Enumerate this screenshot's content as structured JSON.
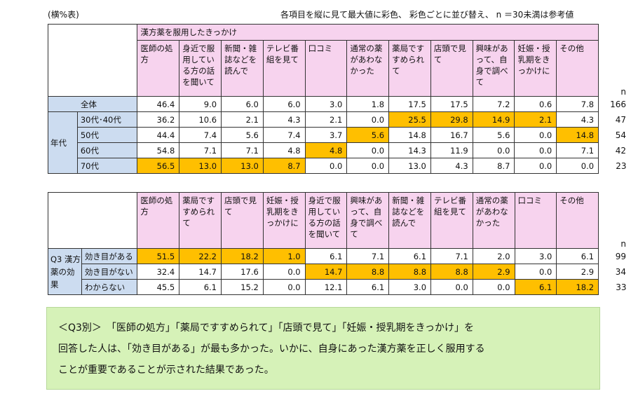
{
  "header": {
    "left": "(横%表)",
    "right": "各項目を縦に見て最大値に彩色、 彩色ごとに並び替え、 n ＝30未満は参考値"
  },
  "table1": {
    "title": "漢方薬を服用したきっかけ",
    "columns": [
      "医師の処方",
      "身近で服用している方の話を聞いて",
      "新聞・雑誌などを読んで",
      "テレビ番組を見て",
      "口コミ",
      "通常の薬があわなかった",
      "薬局ですすめられて",
      "店頭で見て",
      "興味があって、自身で調べて",
      "妊娠・授乳期をきっかけに",
      "その他"
    ],
    "n_label": "n",
    "group_label": "年代",
    "rows": [
      {
        "label": "全体",
        "values": [
          "46.4",
          "9.0",
          "6.0",
          "6.0",
          "3.0",
          "1.8",
          "17.5",
          "17.5",
          "7.2",
          "0.6",
          "7.8"
        ],
        "n": "166"
      },
      {
        "label": "30代･40代",
        "values": [
          "36.2",
          "10.6",
          "2.1",
          "4.3",
          "2.1",
          "0.0",
          "25.5",
          "29.8",
          "14.9",
          "2.1",
          "4.3"
        ],
        "n": "47"
      },
      {
        "label": "50代",
        "values": [
          "44.4",
          "7.4",
          "5.6",
          "7.4",
          "3.7",
          "5.6",
          "14.8",
          "16.7",
          "5.6",
          "0.0",
          "14.8"
        ],
        "n": "54"
      },
      {
        "label": "60代",
        "values": [
          "54.8",
          "7.1",
          "7.1",
          "4.8",
          "4.8",
          "0.0",
          "14.3",
          "11.9",
          "0.0",
          "0.0",
          "7.1"
        ],
        "n": "42"
      },
      {
        "label": "70代",
        "values": [
          "56.5",
          "13.0",
          "13.0",
          "8.7",
          "0.0",
          "0.0",
          "13.0",
          "4.3",
          "8.7",
          "0.0",
          "0.0"
        ],
        "n": "23"
      }
    ]
  },
  "table2": {
    "columns": [
      "医師の処方",
      "薬局ですすめられて",
      "店頭で見て",
      "妊娠・授乳期をきっかけに",
      "身近で服用している方の話を聞いて",
      "興味があって、自身で調べて",
      "新聞・雑誌などを読んで",
      "テレビ番組を見て",
      "通常の薬があわなかった",
      "口コミ",
      "その他"
    ],
    "n_label": "n",
    "group_label": "Q3 漢方薬の効果",
    "rows": [
      {
        "label": "効き目がある",
        "values": [
          "51.5",
          "22.2",
          "18.2",
          "1.0",
          "6.1",
          "7.1",
          "6.1",
          "7.1",
          "2.0",
          "3.0",
          "6.1"
        ],
        "n": "99"
      },
      {
        "label": "効き目がない",
        "values": [
          "32.4",
          "14.7",
          "17.6",
          "0.0",
          "14.7",
          "8.8",
          "8.8",
          "8.8",
          "2.9",
          "0.0",
          "2.9"
        ],
        "n": "34"
      },
      {
        "label": "わからない",
        "values": [
          "45.5",
          "6.1",
          "15.2",
          "0.0",
          "12.1",
          "6.1",
          "3.0",
          "0.0",
          "0.0",
          "6.1",
          "18.2"
        ],
        "n": "33"
      }
    ]
  },
  "note": {
    "line1": "＜Q3別＞　「医師の処方」「薬局ですすめられて」「店頭で見て」「妊娠・授乳期をきっかけ」を",
    "line2": "回答した人は、「効き目がある」が最も多かった。いかに、自身にあった漢方薬を正しく服用する",
    "line3": "ことが重要であることが示された結果であった。"
  },
  "colors": {
    "header_pink": "#f7d3ee",
    "row_blue": "#ccdcf0",
    "highlight": "#ffbf00",
    "note_green": "#d6f2b8"
  }
}
